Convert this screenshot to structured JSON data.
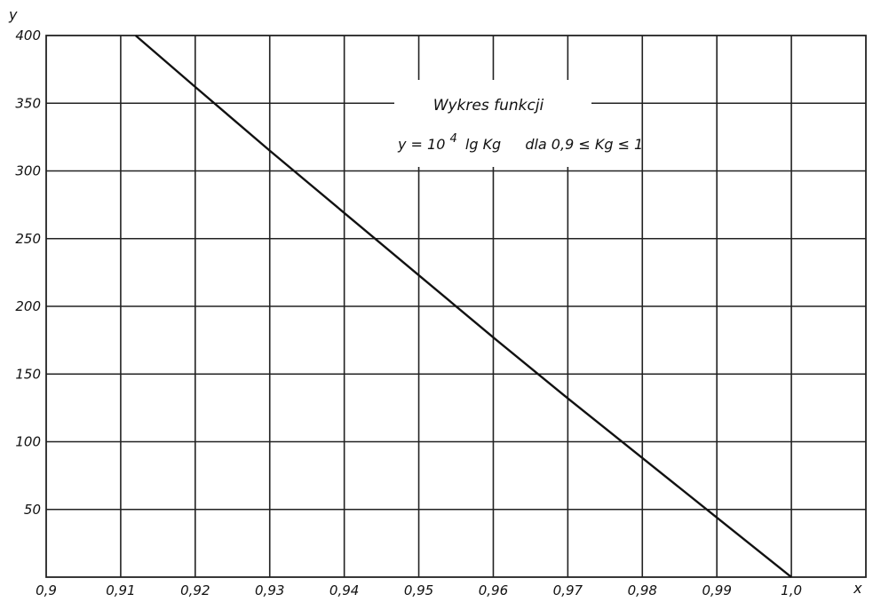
{
  "chart_data": {
    "type": "line",
    "title": "Wykres funkcji",
    "subtitle": {
      "lhs": "y = 10",
      "exponent": "4",
      "rhs": "lg Kg",
      "condition": "dla 0,9 ≤ Kg ≤ 1"
    },
    "xlabel": "x",
    "ylabel": "y",
    "xlim": [
      0.9,
      1.01
    ],
    "ylim": [
      0,
      400
    ],
    "x_ticks": [
      {
        "value": 0.9,
        "label": "0,9"
      },
      {
        "value": 0.91,
        "label": "0,91"
      },
      {
        "value": 0.92,
        "label": "0,92"
      },
      {
        "value": 0.93,
        "label": "0,93"
      },
      {
        "value": 0.94,
        "label": "0,94"
      },
      {
        "value": 0.95,
        "label": "0,95"
      },
      {
        "value": 0.96,
        "label": "0,96"
      },
      {
        "value": 0.97,
        "label": "0,97"
      },
      {
        "value": 0.98,
        "label": "0,98"
      },
      {
        "value": 0.99,
        "label": "0,99"
      },
      {
        "value": 1.0,
        "label": "1,0"
      }
    ],
    "y_ticks": [
      {
        "value": 50,
        "label": "50"
      },
      {
        "value": 100,
        "label": "100"
      },
      {
        "value": 150,
        "label": "150"
      },
      {
        "value": 200,
        "label": "200"
      },
      {
        "value": 250,
        "label": "250"
      },
      {
        "value": 300,
        "label": "300"
      },
      {
        "value": 350,
        "label": "350"
      },
      {
        "value": 400,
        "label": "400"
      }
    ],
    "grid": true,
    "series": [
      {
        "x": [
          0.912,
          0.92,
          0.93,
          0.94,
          0.95,
          0.96,
          0.97,
          0.98,
          0.99,
          1.0
        ],
        "y": [
          400,
          362,
          315,
          269,
          223,
          177,
          132,
          88,
          44,
          0
        ]
      }
    ]
  }
}
